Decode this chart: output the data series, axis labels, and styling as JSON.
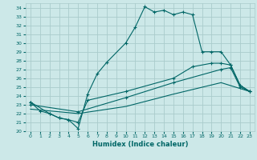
{
  "xlabel": "Humidex (Indice chaleur)",
  "bg_color": "#cce8e8",
  "grid_color": "#aacccc",
  "line_color": "#006666",
  "xlim": [
    -0.5,
    23.5
  ],
  "ylim": [
    20,
    34.5
  ],
  "xticks": [
    0,
    1,
    2,
    3,
    4,
    5,
    6,
    7,
    8,
    9,
    10,
    11,
    12,
    13,
    14,
    15,
    16,
    17,
    18,
    19,
    20,
    21,
    22,
    23
  ],
  "yticks": [
    20,
    21,
    22,
    23,
    24,
    25,
    26,
    27,
    28,
    29,
    30,
    31,
    32,
    33,
    34
  ],
  "line1_x": [
    0,
    1,
    2,
    3,
    4,
    5,
    6,
    7,
    8,
    10,
    11,
    12,
    13,
    14,
    15,
    16,
    17,
    18,
    19,
    20,
    21,
    22,
    23
  ],
  "line1_y": [
    23.3,
    22.3,
    22.0,
    21.5,
    21.3,
    20.3,
    24.2,
    26.5,
    27.8,
    30.0,
    31.8,
    34.1,
    33.5,
    33.7,
    33.2,
    33.5,
    33.2,
    29.0,
    29.0,
    29.0,
    27.5,
    25.2,
    24.5
  ],
  "line2_x": [
    0,
    2,
    3,
    4,
    5,
    6,
    10,
    15,
    17,
    19,
    20,
    21,
    22,
    23
  ],
  "line2_y": [
    23.3,
    22.0,
    21.5,
    21.3,
    21.0,
    23.5,
    24.5,
    26.0,
    27.3,
    27.7,
    27.7,
    27.5,
    25.2,
    24.5
  ],
  "line3_x": [
    0,
    5,
    10,
    15,
    20,
    21,
    22,
    23
  ],
  "line3_y": [
    23.0,
    22.2,
    23.8,
    25.5,
    27.0,
    27.2,
    25.0,
    24.5
  ],
  "line4_x": [
    0,
    5,
    10,
    15,
    20,
    23
  ],
  "line4_y": [
    22.5,
    22.0,
    22.8,
    24.2,
    25.5,
    24.5
  ]
}
